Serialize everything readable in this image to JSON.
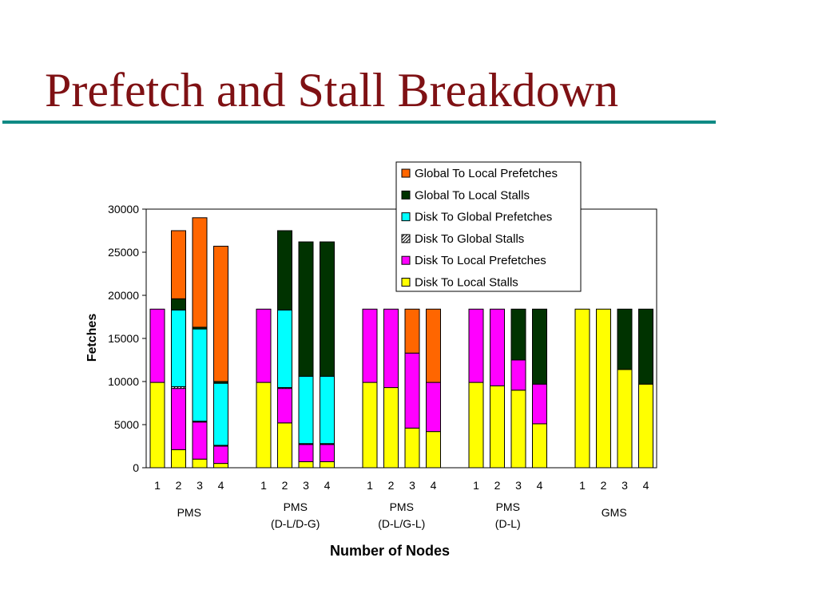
{
  "title": "Prefetch and Stall Breakdown",
  "colors": {
    "title": "#7f1114",
    "rule": "#0f8a84",
    "Disk To Local Stalls": "#ffff00",
    "Disk To Local Prefetches": "#ff00ff",
    "Disk To Global Stalls": "#ffffff",
    "Disk To Global Prefetches": "#00ffff",
    "Global To Local Stalls": "#003300",
    "Global To Local Prefetches": "#ff6600"
  },
  "chart_data": {
    "type": "bar",
    "stacked": true,
    "xlabel": "Number of Nodes",
    "ylabel": "Fetches",
    "ylim": [
      0,
      30000
    ],
    "yticks": [
      0,
      5000,
      10000,
      15000,
      20000,
      25000,
      30000
    ],
    "legend_position": "top-right",
    "grid": false,
    "groups": [
      {
        "label": [
          "PMS"
        ],
        "categories": [
          "1",
          "2",
          "3",
          "4"
        ]
      },
      {
        "label": [
          "PMS",
          "(D-L/D-G)"
        ],
        "categories": [
          "1",
          "2",
          "3",
          "4"
        ]
      },
      {
        "label": [
          "PMS",
          "(D-L/G-L)"
        ],
        "categories": [
          "1",
          "2",
          "3",
          "4"
        ]
      },
      {
        "label": [
          "PMS",
          "(D-L)"
        ],
        "categories": [
          "1",
          "2",
          "3",
          "4"
        ]
      },
      {
        "label": [
          "GMS"
        ],
        "categories": [
          "1",
          "2",
          "3",
          "4"
        ]
      }
    ],
    "legend_order": [
      "Global To Local Prefetches",
      "Global To Local Stalls",
      "Disk To Global Prefetches",
      "Disk To Global Stalls",
      "Disk To Local Prefetches",
      "Disk To Local Stalls"
    ],
    "series": [
      {
        "name": "Disk To Local Stalls",
        "values": [
          9900,
          2100,
          1000,
          500,
          9900,
          5200,
          700,
          700,
          9900,
          9300,
          4600,
          4200,
          9900,
          9500,
          9000,
          5100,
          18400,
          18400,
          11400,
          9700
        ]
      },
      {
        "name": "Disk To Local Prefetches",
        "values": [
          8500,
          7100,
          4300,
          2000,
          8500,
          4000,
          2000,
          2000,
          8500,
          9100,
          8700,
          5700,
          8500,
          8900,
          3500,
          4600,
          0,
          0,
          0,
          0
        ]
      },
      {
        "name": "Disk To Global Stalls",
        "values": [
          0,
          200,
          100,
          100,
          0,
          100,
          100,
          100,
          0,
          0,
          0,
          0,
          0,
          0,
          0,
          0,
          0,
          0,
          0,
          0
        ]
      },
      {
        "name": "Disk To Global Prefetches",
        "values": [
          0,
          8900,
          10700,
          7200,
          0,
          9000,
          7800,
          7800,
          0,
          0,
          0,
          0,
          0,
          0,
          0,
          0,
          0,
          0,
          0,
          0
        ]
      },
      {
        "name": "Global To Local Stalls",
        "values": [
          0,
          1300,
          200,
          200,
          0,
          9200,
          15600,
          15600,
          0,
          0,
          0,
          0,
          0,
          0,
          5900,
          8700,
          0,
          0,
          7000,
          8700
        ]
      },
      {
        "name": "Global To Local Prefetches",
        "values": [
          0,
          7900,
          12700,
          15700,
          0,
          0,
          0,
          0,
          0,
          0,
          5100,
          8500,
          0,
          0,
          0,
          0,
          0,
          0,
          0,
          0
        ]
      }
    ]
  }
}
